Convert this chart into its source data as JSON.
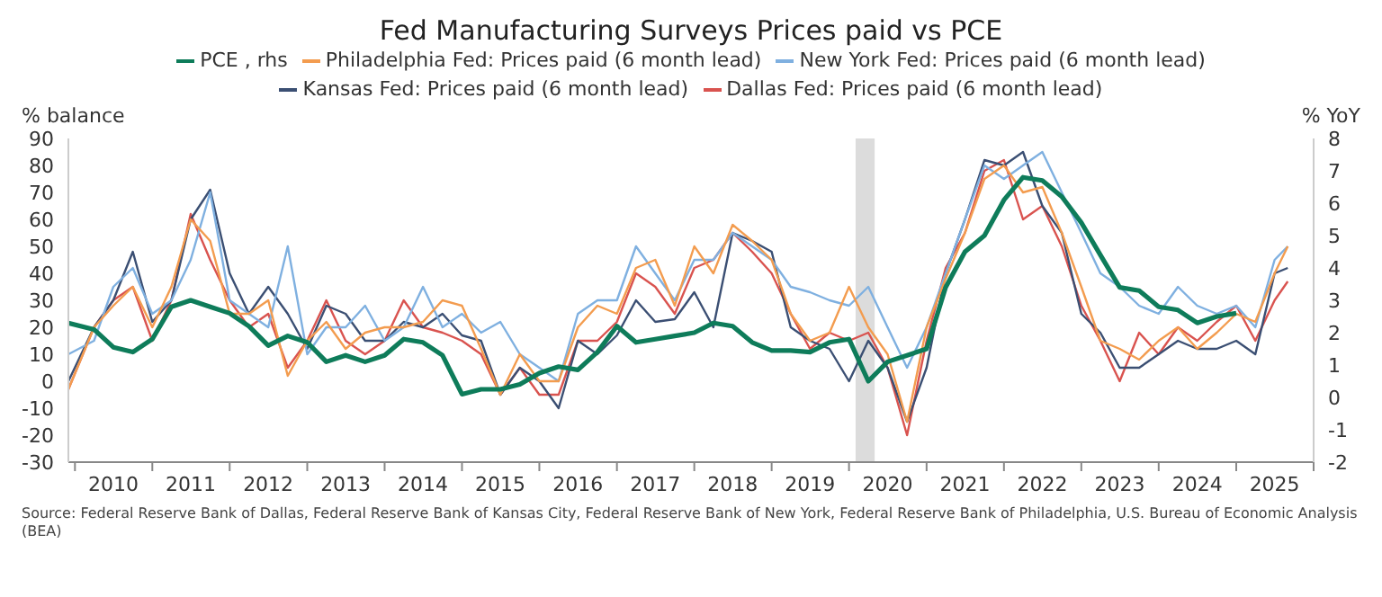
{
  "chart_data": {
    "type": "line",
    "title": "Fed Manufacturing Surveys Prices paid vs PCE",
    "ylabel": "% balance",
    "y2label": "% YoY",
    "annotations": [
      "Source: Federal Reserve Bank of Dallas, Federal Reserve Bank of Kansas City, Federal Reserve Bank of New York, Federal Reserve Bank of Philadelphia, U.S. Bureau of Economic Analysis (BEA)"
    ],
    "x": [
      "2009-12",
      "2010-04",
      "2010-07",
      "2010-10",
      "2011-01",
      "2011-04",
      "2011-07",
      "2011-10",
      "2012-01",
      "2012-04",
      "2012-07",
      "2012-10",
      "2013-01",
      "2013-04",
      "2013-07",
      "2013-10",
      "2014-01",
      "2014-04",
      "2014-07",
      "2014-10",
      "2015-01",
      "2015-04",
      "2015-07",
      "2015-10",
      "2016-01",
      "2016-04",
      "2016-07",
      "2016-10",
      "2017-01",
      "2017-04",
      "2017-07",
      "2017-10",
      "2018-01",
      "2018-04",
      "2018-07",
      "2018-10",
      "2019-01",
      "2019-04",
      "2019-07",
      "2019-10",
      "2020-01",
      "2020-04",
      "2020-07",
      "2020-10",
      "2021-01",
      "2021-04",
      "2021-07",
      "2021-10",
      "2022-01",
      "2022-04",
      "2022-07",
      "2022-10",
      "2023-01",
      "2023-04",
      "2023-07",
      "2023-10",
      "2024-01",
      "2024-04",
      "2024-07",
      "2024-10",
      "2025-01",
      "2025-04",
      "2025-07",
      "2025-09"
    ],
    "series": [
      {
        "name": "PCE , rhs",
        "color": "#0e7c5a",
        "axis": "y2",
        "values": [
          2.3,
          2.1,
          1.55,
          1.4,
          1.8,
          2.8,
          3.0,
          2.8,
          2.6,
          2.2,
          1.6,
          1.9,
          1.7,
          1.1,
          1.3,
          1.1,
          1.3,
          1.8,
          1.7,
          1.3,
          0.1,
          0.25,
          0.25,
          0.4,
          0.75,
          0.95,
          0.85,
          1.4,
          2.2,
          1.7,
          1.8,
          1.9,
          2.0,
          2.3,
          2.2,
          1.7,
          1.45,
          1.45,
          1.4,
          1.7,
          1.8,
          0.5,
          1.1,
          1.3,
          1.5,
          3.4,
          4.5,
          5.0,
          6.1,
          6.8,
          6.7,
          6.2,
          5.4,
          4.4,
          3.4,
          3.3,
          2.8,
          2.7,
          2.3,
          2.5,
          2.6,
          null,
          null,
          null
        ]
      },
      {
        "name": "Philadelphia Fed: Prices paid (6 month lead)",
        "color": "#f39c4f",
        "values": [
          -3,
          20,
          28,
          35,
          20,
          35,
          60,
          52,
          25,
          25,
          30,
          2,
          15,
          22,
          12,
          18,
          20,
          20,
          22,
          30,
          28,
          12,
          -5,
          10,
          0,
          0,
          20,
          28,
          25,
          42,
          45,
          28,
          50,
          40,
          58,
          52,
          45,
          25,
          15,
          18,
          35,
          20,
          10,
          -15,
          20,
          38,
          55,
          75,
          80,
          70,
          72,
          55,
          35,
          15,
          12,
          8,
          15,
          20,
          12,
          18,
          25,
          22,
          40,
          50
        ]
      },
      {
        "name": "New York Fed: Prices paid (6 month lead)",
        "color": "#7fb0e0",
        "values": [
          10,
          15,
          35,
          42,
          25,
          30,
          45,
          70,
          30,
          25,
          20,
          50,
          10,
          20,
          20,
          28,
          15,
          20,
          35,
          20,
          25,
          18,
          22,
          10,
          5,
          0,
          25,
          30,
          30,
          50,
          40,
          30,
          45,
          45,
          55,
          50,
          45,
          35,
          33,
          30,
          28,
          35,
          20,
          5,
          20,
          40,
          60,
          80,
          75,
          80,
          85,
          70,
          55,
          40,
          35,
          28,
          25,
          35,
          28,
          25,
          28,
          20,
          45,
          50
        ]
      },
      {
        "name": "Kansas Fed: Prices paid (6 month lead)",
        "color": "#3b4f73",
        "values": [
          0,
          20,
          30,
          48,
          22,
          30,
          60,
          71,
          40,
          25,
          35,
          25,
          12,
          28,
          25,
          15,
          15,
          22,
          20,
          25,
          17,
          15,
          -5,
          5,
          0,
          -10,
          15,
          10,
          17,
          30,
          22,
          23,
          33,
          20,
          55,
          52,
          48,
          20,
          15,
          12,
          0,
          15,
          5,
          -15,
          5,
          40,
          60,
          82,
          80,
          85,
          65,
          55,
          25,
          18,
          5,
          5,
          10,
          15,
          12,
          12,
          15,
          10,
          40,
          42
        ]
      },
      {
        "name": "Dallas Fed: Prices paid (6 month lead)",
        "color": "#d9534f",
        "values": [
          -3,
          20,
          30,
          35,
          15,
          30,
          62,
          45,
          30,
          20,
          25,
          5,
          15,
          30,
          15,
          10,
          15,
          30,
          20,
          18,
          15,
          10,
          -5,
          5,
          -5,
          -5,
          15,
          15,
          22,
          40,
          35,
          25,
          42,
          45,
          55,
          48,
          40,
          25,
          12,
          18,
          15,
          18,
          5,
          -20,
          15,
          42,
          55,
          78,
          82,
          60,
          65,
          50,
          28,
          15,
          0,
          18,
          10,
          20,
          15,
          22,
          28,
          15,
          30,
          37
        ]
      }
    ],
    "xlim": [
      "2009-12",
      "2026-01"
    ],
    "xticks": [
      {
        "value": "2010-01",
        "label": null
      },
      {
        "value": "2010-07",
        "label": "2010"
      },
      {
        "value": "2011-01",
        "label": null
      },
      {
        "value": "2011-07",
        "label": "2011"
      },
      {
        "value": "2012-01",
        "label": null
      },
      {
        "value": "2012-07",
        "label": "2012"
      },
      {
        "value": "2013-01",
        "label": null
      },
      {
        "value": "2013-07",
        "label": "2013"
      },
      {
        "value": "2014-01",
        "label": null
      },
      {
        "value": "2014-07",
        "label": "2014"
      },
      {
        "value": "2015-01",
        "label": null
      },
      {
        "value": "2015-07",
        "label": "2015"
      },
      {
        "value": "2016-01",
        "label": null
      },
      {
        "value": "2016-07",
        "label": "2016"
      },
      {
        "value": "2017-01",
        "label": null
      },
      {
        "value": "2017-07",
        "label": "2017"
      },
      {
        "value": "2018-01",
        "label": null
      },
      {
        "value": "2018-07",
        "label": "2018"
      },
      {
        "value": "2019-01",
        "label": null
      },
      {
        "value": "2019-07",
        "label": "2019"
      },
      {
        "value": "2020-01",
        "label": null
      },
      {
        "value": "2020-07",
        "label": "2020"
      },
      {
        "value": "2021-01",
        "label": null
      },
      {
        "value": "2021-07",
        "label": "2021"
      },
      {
        "value": "2022-01",
        "label": null
      },
      {
        "value": "2022-07",
        "label": "2022"
      },
      {
        "value": "2023-01",
        "label": null
      },
      {
        "value": "2023-07",
        "label": "2023"
      },
      {
        "value": "2024-01",
        "label": null
      },
      {
        "value": "2024-07",
        "label": "2024"
      },
      {
        "value": "2025-01",
        "label": null
      },
      {
        "value": "2025-07",
        "label": "2025"
      },
      {
        "value": "2026-01",
        "label": null
      }
    ],
    "ylim": [
      -30,
      90
    ],
    "yticks": [
      -30,
      -20,
      -10,
      0,
      10,
      20,
      30,
      40,
      50,
      60,
      70,
      80,
      90
    ],
    "y2lim": [
      -2,
      8
    ],
    "y2ticks": [
      -2,
      -1,
      0,
      1,
      2,
      3,
      4,
      5,
      6,
      7,
      8
    ],
    "bands": [
      {
        "axis": "x",
        "from": "2020-02",
        "to": "2020-05",
        "color": "#dcdcdc"
      }
    ],
    "grid": false,
    "legend": "top",
    "marker": "none",
    "line_style": "solid"
  }
}
